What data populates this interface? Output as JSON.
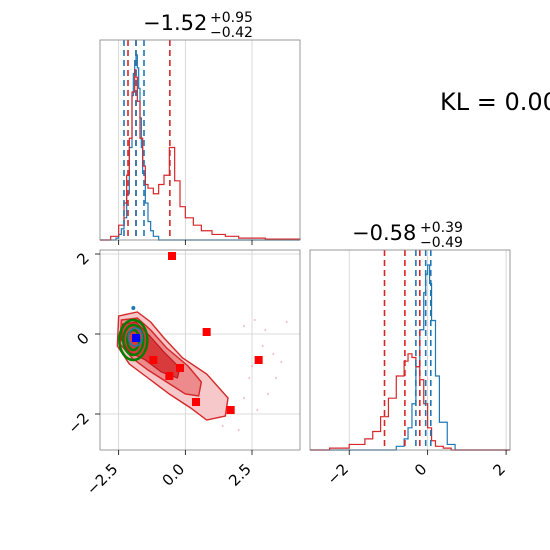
{
  "kl_text": "KL = 0.00",
  "titles": {
    "p1": {
      "main": "−1.52",
      "sup": "+0.95",
      "sub": "−0.42"
    },
    "p2": {
      "main": "−0.58",
      "sup": "+0.39",
      "sub": "−0.49"
    }
  },
  "chart_data": [
    {
      "type": "line",
      "panel": "marginal-1",
      "xlim": [
        -3.2,
        4.3
      ],
      "vlines": {
        "red": [
          -2.15,
          -1.85,
          -0.58
        ],
        "blue": [
          -2.3,
          -1.85,
          -1.55
        ]
      },
      "series": [
        {
          "color": "#1f77b4",
          "x": [
            -3.2,
            -2.8,
            -2.6,
            -2.5,
            -2.4,
            -2.3,
            -2.2,
            -2.1,
            -2.0,
            -1.95,
            -1.9,
            -1.85,
            -1.8,
            -1.75,
            -1.7,
            -1.65,
            -1.6,
            -1.5,
            -1.4,
            -1.3,
            -1.2,
            -1.0,
            4.3
          ],
          "y": [
            0,
            0,
            0.01,
            0.03,
            0.06,
            0.12,
            0.25,
            0.5,
            0.78,
            0.9,
            0.97,
            1.0,
            0.93,
            0.82,
            0.66,
            0.5,
            0.36,
            0.2,
            0.1,
            0.05,
            0.02,
            0.0,
            0
          ]
        },
        {
          "color": "#d62728",
          "x": [
            -3.2,
            -2.8,
            -2.5,
            -2.3,
            -2.2,
            -2.1,
            -2.0,
            -1.9,
            -1.85,
            -1.8,
            -1.7,
            -1.6,
            -1.5,
            -1.4,
            -1.2,
            -1.0,
            -0.8,
            -0.6,
            -0.4,
            -0.2,
            0.0,
            0.3,
            0.6,
            1.0,
            1.5,
            2.0,
            2.5,
            3.0,
            3.5,
            4.3
          ],
          "y": [
            0,
            0.02,
            0.08,
            0.2,
            0.35,
            0.55,
            0.8,
            0.92,
            0.88,
            0.75,
            0.55,
            0.4,
            0.3,
            0.28,
            0.25,
            0.3,
            0.35,
            0.5,
            0.32,
            0.18,
            0.12,
            0.08,
            0.05,
            0.03,
            0.02,
            0.01,
            0.01,
            0.005,
            0.005,
            0
          ]
        }
      ]
    },
    {
      "type": "line",
      "panel": "marginal-2",
      "xlim": [
        -3.0,
        2.1
      ],
      "ticks": [
        "−2",
        "0",
        "2"
      ],
      "tick_values": [
        -2,
        0,
        2
      ],
      "vlines": {
        "red": [
          -1.1,
          -0.58,
          -0.2
        ],
        "blue": [
          -0.3,
          -0.05,
          0.08
        ]
      },
      "series": [
        {
          "color": "#1f77b4",
          "x": [
            -3.0,
            -1.0,
            -0.8,
            -0.6,
            -0.5,
            -0.4,
            -0.3,
            -0.2,
            -0.1,
            -0.05,
            0.0,
            0.05,
            0.1,
            0.2,
            0.3,
            0.5,
            0.7,
            2.1
          ],
          "y": [
            0,
            0,
            0.02,
            0.06,
            0.12,
            0.25,
            0.45,
            0.65,
            0.85,
            0.95,
            1.0,
            0.9,
            0.7,
            0.4,
            0.15,
            0.03,
            0,
            0
          ]
        },
        {
          "color": "#d62728",
          "x": [
            -3.0,
            -2.5,
            -2.0,
            -1.6,
            -1.4,
            -1.2,
            -1.0,
            -0.8,
            -0.6,
            -0.5,
            -0.4,
            -0.3,
            -0.2,
            -0.1,
            0.0,
            0.1,
            0.2,
            0.4,
            0.6,
            2.1
          ],
          "y": [
            0,
            0.01,
            0.03,
            0.06,
            0.1,
            0.18,
            0.28,
            0.4,
            0.48,
            0.52,
            0.5,
            0.45,
            0.38,
            0.25,
            0.12,
            0.05,
            0.02,
            0.01,
            0,
            0
          ]
        }
      ]
    },
    {
      "type": "scatter",
      "panel": "joint",
      "xlim": [
        -3.2,
        4.3
      ],
      "ylim": [
        -2.9,
        2.1
      ],
      "xticks": [
        "−2.5",
        "0.0",
        "2.5"
      ],
      "xtick_values": [
        -2.5,
        0.0,
        2.5
      ],
      "yticks": [
        "−2",
        "0",
        "2"
      ],
      "ytick_values": [
        -2,
        0,
        2
      ],
      "red_points": [
        {
          "x": -0.5,
          "y": 1.95
        },
        {
          "x": 0.8,
          "y": 0.05
        },
        {
          "x": -1.2,
          "y": -0.65
        },
        {
          "x": -0.2,
          "y": -0.85
        },
        {
          "x": -0.6,
          "y": -1.05
        },
        {
          "x": 0.4,
          "y": -1.7
        },
        {
          "x": 1.7,
          "y": -1.9
        },
        {
          "x": 2.75,
          "y": -0.65
        }
      ],
      "blue_point": {
        "x": -1.85,
        "y": -0.1
      },
      "colors": {
        "red": "#d62728",
        "blue": "#1f77b4",
        "green": "#008000",
        "marker_red": "#ff0000",
        "marker_blue": "#0000ff"
      }
    }
  ]
}
